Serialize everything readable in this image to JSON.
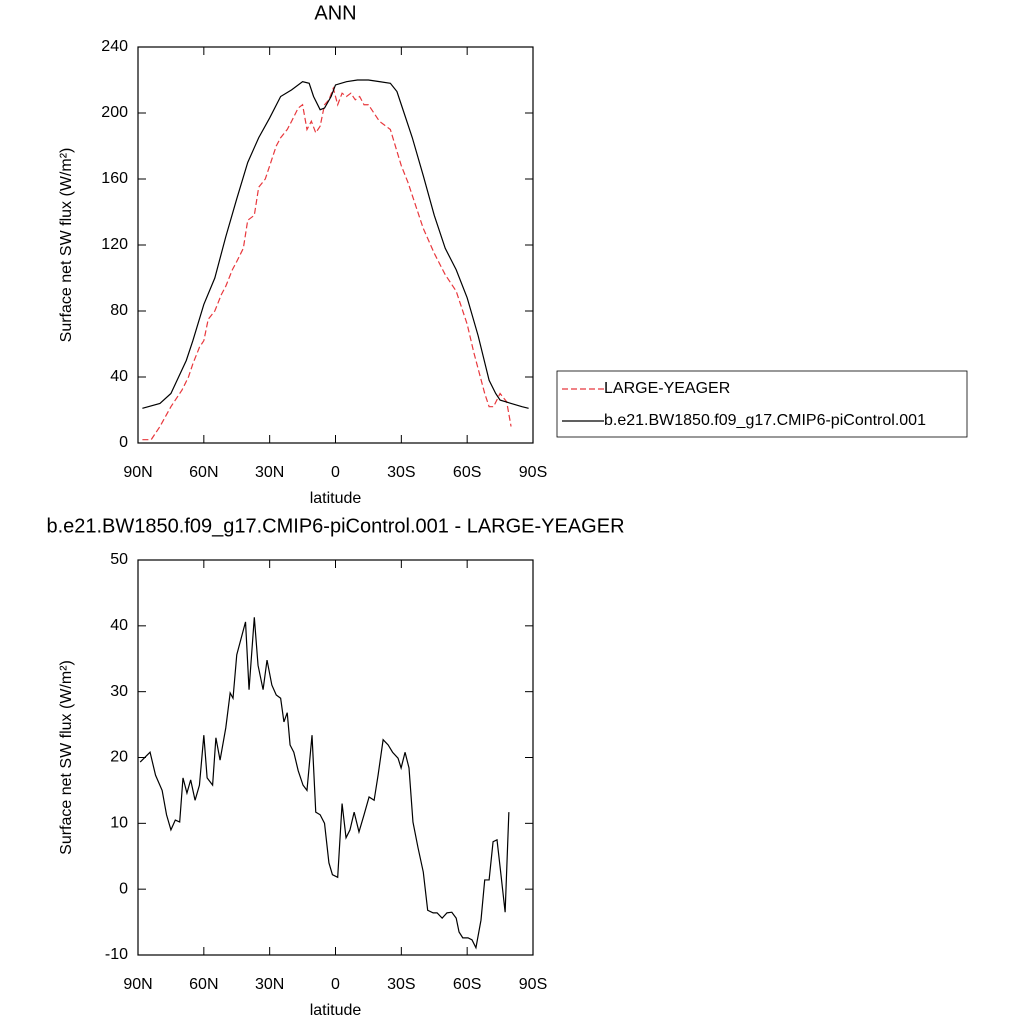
{
  "chart_data": [
    {
      "type": "line",
      "title": "ANN",
      "xlabel": "latitude",
      "ylabel": "Surface net SW flux (W/m²)",
      "xlim": [
        90,
        -90
      ],
      "xticks": [
        {
          "value": 90,
          "label": "90N"
        },
        {
          "value": 60,
          "label": "60N"
        },
        {
          "value": 30,
          "label": "30N"
        },
        0,
        {
          "value": -30,
          "label": "30S"
        },
        {
          "value": -60,
          "label": "60S"
        },
        {
          "value": -90,
          "label": "90S"
        }
      ],
      "ylim": [
        0,
        240
      ],
      "yticks": [
        0,
        40,
        80,
        120,
        160,
        200,
        240
      ],
      "legend": "right",
      "series": [
        {
          "name": "LARGE-YEAGER",
          "color": "#e8383d",
          "linestyle": "dashed",
          "x": [
            88,
            84,
            80,
            75,
            70,
            67,
            65,
            62,
            60,
            58,
            55,
            52,
            50,
            47,
            45,
            42,
            40,
            37,
            35,
            32,
            30,
            27,
            25,
            22,
            20,
            17,
            15,
            13,
            11,
            9,
            7,
            5,
            3,
            1,
            -1,
            -3,
            -5,
            -7,
            -9,
            -11,
            -13,
            -15,
            -20,
            -25,
            -30,
            -33,
            -35,
            -40,
            -45,
            -50,
            -55,
            -60,
            -63,
            -65,
            -68,
            -70,
            -72,
            -75,
            -78,
            -80
          ],
          "values": [
            2,
            2,
            10,
            22,
            32,
            40,
            48,
            58,
            62,
            75,
            80,
            90,
            95,
            105,
            110,
            118,
            135,
            138,
            155,
            160,
            168,
            180,
            185,
            190,
            195,
            203,
            205,
            190,
            195,
            188,
            192,
            205,
            208,
            215,
            205,
            212,
            210,
            212,
            208,
            210,
            205,
            205,
            195,
            190,
            168,
            158,
            150,
            130,
            115,
            102,
            92,
            72,
            55,
            45,
            30,
            22,
            22,
            30,
            25,
            10
          ]
        },
        {
          "name": "b.e21.BW1850.f09_g17.CMIP6-piControl.001",
          "color": "#000000",
          "linestyle": "solid",
          "x": [
            88,
            80,
            75,
            68,
            65,
            60,
            55,
            50,
            45,
            40,
            35,
            30,
            25,
            20,
            15,
            12,
            10,
            7,
            5,
            2,
            0,
            -5,
            -10,
            -15,
            -20,
            -25,
            -28,
            -30,
            -35,
            -40,
            -45,
            -50,
            -55,
            -60,
            -65,
            -70,
            -73,
            -75,
            -80,
            -85,
            -88
          ],
          "values": [
            21,
            24,
            30,
            50,
            62,
            84,
            100,
            125,
            148,
            170,
            185,
            197,
            210,
            214,
            219,
            218,
            210,
            202,
            203,
            210,
            217,
            219,
            220,
            220,
            219,
            218,
            213,
            205,
            185,
            162,
            138,
            118,
            105,
            88,
            65,
            38,
            30,
            26,
            24,
            22,
            21
          ]
        }
      ]
    },
    {
      "type": "line",
      "title": "b.e21.BW1850.f09_g17.CMIP6-piControl.001 - LARGE-YEAGER",
      "xlabel": "latitude",
      "ylabel": "Surface net SW flux (W/m²)",
      "xlim": [
        90,
        -90
      ],
      "xticks": [
        {
          "value": 90,
          "label": "90N"
        },
        {
          "value": 60,
          "label": "60N"
        },
        {
          "value": 30,
          "label": "30N"
        },
        0,
        {
          "value": -30,
          "label": "30S"
        },
        {
          "value": -60,
          "label": "60S"
        },
        {
          "value": -90,
          "label": "90S"
        }
      ],
      "ylim": [
        -10,
        50
      ],
      "yticks": [
        -10,
        0,
        10,
        20,
        30,
        40,
        50
      ],
      "color": "#000000",
      "x": [
        89,
        84.5,
        82,
        79,
        77,
        75,
        73,
        71,
        69.5,
        67.7,
        66,
        64,
        62,
        60,
        58.5,
        56,
        54.5,
        52.6,
        50,
        48,
        46.7,
        45,
        41,
        39.4,
        37,
        35.3,
        33,
        31.2,
        29,
        27,
        25,
        23.5,
        22,
        20.7,
        19,
        17,
        14.8,
        13,
        10.7,
        9,
        7,
        5,
        3,
        1.4,
        -1,
        -3,
        -4.8,
        -6.6,
        -8.5,
        -10.7,
        -13,
        -15.3,
        -17.6,
        -19.4,
        -21.7,
        -24,
        -26,
        -28.5,
        -29.9,
        -31.7,
        -33.5,
        -35.3,
        -37.6,
        -40,
        -42,
        -44.5,
        -46.3,
        -48.6,
        -50.8,
        -53,
        -55,
        -56.3,
        -58,
        -60.4,
        -62.2,
        -64,
        -66.3,
        -68,
        -70,
        -71.8,
        -73.6,
        -75.4,
        -77.3,
        -79
      ],
      "values": [
        19.3,
        20.8,
        17.3,
        15,
        11.3,
        9,
        10.5,
        10.2,
        16.9,
        14.6,
        16.6,
        13.5,
        15.8,
        23.4,
        16.9,
        15.8,
        23,
        19.6,
        24.5,
        29.8,
        29,
        35.6,
        40.6,
        30.3,
        41.3,
        34,
        30.3,
        34.8,
        31,
        29.5,
        29,
        25.4,
        26.8,
        21.9,
        20.8,
        18,
        15.8,
        15,
        23.4,
        11.7,
        11.3,
        10,
        4,
        2.2,
        1.8,
        13,
        7.8,
        9,
        11.7,
        8.7,
        11.3,
        14,
        13.5,
        17.3,
        22.7,
        21.9,
        20.8,
        19.9,
        18.4,
        20.8,
        18.4,
        10.2,
        6.3,
        2.6,
        -3.2,
        -3.6,
        -3.6,
        -4.4,
        -3.6,
        -3.5,
        -4.4,
        -6.5,
        -7.4,
        -7.4,
        -7.7,
        -8.9,
        -4.7,
        1.4,
        1.4,
        7.2,
        7.5,
        2.2,
        -3.5,
        11.7
      ]
    }
  ]
}
